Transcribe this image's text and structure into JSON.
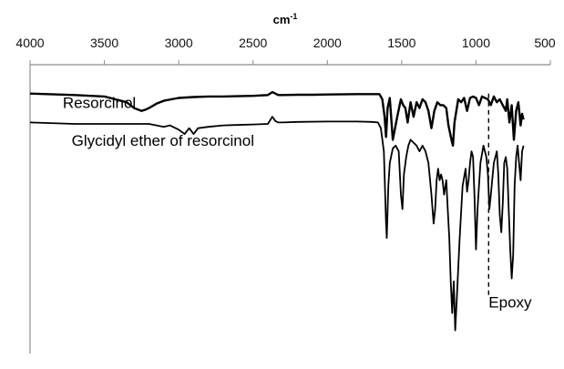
{
  "chart_data": {
    "type": "line",
    "title": "",
    "xlabel": "cm",
    "xlabel_superscript": "-1",
    "ylabel": "",
    "xlim": [
      4000,
      500
    ],
    "x_reversed": true,
    "x_axis_position": "top",
    "ylim": [
      0,
      100
    ],
    "y_ticks_shown": false,
    "grid": false,
    "legend": "none",
    "x_ticks": [
      4000,
      3500,
      3000,
      2500,
      2000,
      1500,
      1000,
      500
    ],
    "x_tick_labels": [
      "4000",
      "3500",
      "3000",
      "2500",
      "2000",
      "1500",
      "1000",
      "500"
    ],
    "series": [
      {
        "name": "Resorcinol",
        "color": "#000000",
        "x": [
          4000,
          3700,
          3500,
          3350,
          3300,
          3250,
          3220,
          3200,
          3150,
          3100,
          3050,
          3000,
          2900,
          2800,
          2700,
          2500,
          2400,
          2370,
          2350,
          2330,
          2300,
          2200,
          2100,
          2000,
          1800,
          1700,
          1650,
          1630,
          1615,
          1605,
          1595,
          1580,
          1560,
          1530,
          1505,
          1490,
          1475,
          1460,
          1440,
          1420,
          1400,
          1380,
          1360,
          1340,
          1320,
          1300,
          1280,
          1260,
          1240,
          1220,
          1200,
          1185,
          1165,
          1155,
          1145,
          1120,
          1100,
          1080,
          1060,
          1040,
          1020,
          1000,
          980,
          960,
          940,
          920,
          900,
          880,
          860,
          840,
          820,
          800,
          790,
          775,
          760,
          745,
          730,
          715,
          700,
          690,
          680
        ],
        "y": [
          90,
          89.5,
          89,
          87,
          85,
          84,
          84.5,
          85,
          86.5,
          87.5,
          88,
          88.5,
          88.8,
          89,
          89,
          89.2,
          89.5,
          90.5,
          90,
          89.5,
          89.5,
          89.6,
          89.6,
          89.7,
          89.8,
          89.8,
          89.8,
          88,
          82,
          75,
          85,
          88.5,
          74,
          82,
          88,
          86,
          85,
          80,
          87,
          82,
          87,
          85,
          88,
          87,
          84,
          78,
          84,
          87,
          86,
          86,
          85,
          79,
          74,
          72,
          80,
          88,
          87,
          88.5,
          84,
          88.5,
          89,
          88.5,
          86,
          89,
          88.5,
          88,
          86,
          89,
          87,
          88,
          86,
          84,
          88,
          80,
          86,
          74,
          84,
          87,
          79,
          83,
          81
        ]
      },
      {
        "name": "Glycidyl ether of resorcinol",
        "color": "#000000",
        "x": [
          4000,
          3700,
          3500,
          3300,
          3200,
          3100,
          3060,
          3000,
          2960,
          2930,
          2900,
          2870,
          2800,
          2700,
          2500,
          2400,
          2370,
          2350,
          2330,
          2300,
          2200,
          2000,
          1800,
          1700,
          1660,
          1640,
          1620,
          1605,
          1600,
          1590,
          1580,
          1560,
          1540,
          1520,
          1505,
          1495,
          1485,
          1470,
          1455,
          1440,
          1420,
          1400,
          1380,
          1360,
          1340,
          1320,
          1300,
          1285,
          1275,
          1265,
          1255,
          1245,
          1235,
          1225,
          1215,
          1200,
          1190,
          1180,
          1170,
          1160,
          1150,
          1140,
          1130,
          1110,
          1090,
          1070,
          1060,
          1050,
          1040,
          1030,
          1020,
          1010,
          1000,
          990,
          970,
          950,
          940,
          930,
          920,
          910,
          900,
          880,
          860,
          850,
          840,
          830,
          820,
          810,
          800,
          790,
          780,
          770,
          760,
          750,
          740,
          730,
          720,
          710,
          700,
          690,
          680
        ],
        "y": [
          80,
          79.5,
          79.5,
          79.5,
          79.5,
          78.5,
          79,
          77.5,
          76,
          78,
          76,
          78,
          78.5,
          79,
          79.3,
          79.5,
          82,
          80.5,
          80,
          80,
          80.2,
          80.3,
          80.3,
          80.2,
          80,
          78,
          70,
          45,
          40,
          58,
          66,
          71,
          72,
          70,
          55,
          50,
          62,
          68,
          72,
          74,
          73,
          72,
          70,
          72,
          70,
          66,
          55,
          45,
          50,
          60,
          64,
          60,
          62,
          60,
          55,
          60,
          50,
          40,
          25,
          14,
          25,
          8,
          18,
          40,
          58,
          64,
          56,
          60,
          66,
          70,
          68,
          54,
          36,
          50,
          66,
          72,
          70,
          68,
          62,
          50,
          55,
          66,
          70,
          62,
          48,
          42,
          52,
          66,
          68,
          64,
          50,
          36,
          26,
          34,
          58,
          68,
          72,
          66,
          60,
          70,
          72
        ]
      }
    ],
    "annotations": [
      {
        "text": "Resorcinol",
        "x": 3780,
        "y": 85,
        "target_series": "Resorcinol"
      },
      {
        "text": "Glycidyl ether of resorcinol",
        "x": 3720,
        "y": 72,
        "target_series": "Glycidyl ether of resorcinol"
      },
      {
        "text": "Epoxy",
        "x": 915,
        "y": 16,
        "marker": "dashed vertical line",
        "marker_x": 915,
        "marker_y_range": [
          90,
          20
        ]
      }
    ]
  }
}
